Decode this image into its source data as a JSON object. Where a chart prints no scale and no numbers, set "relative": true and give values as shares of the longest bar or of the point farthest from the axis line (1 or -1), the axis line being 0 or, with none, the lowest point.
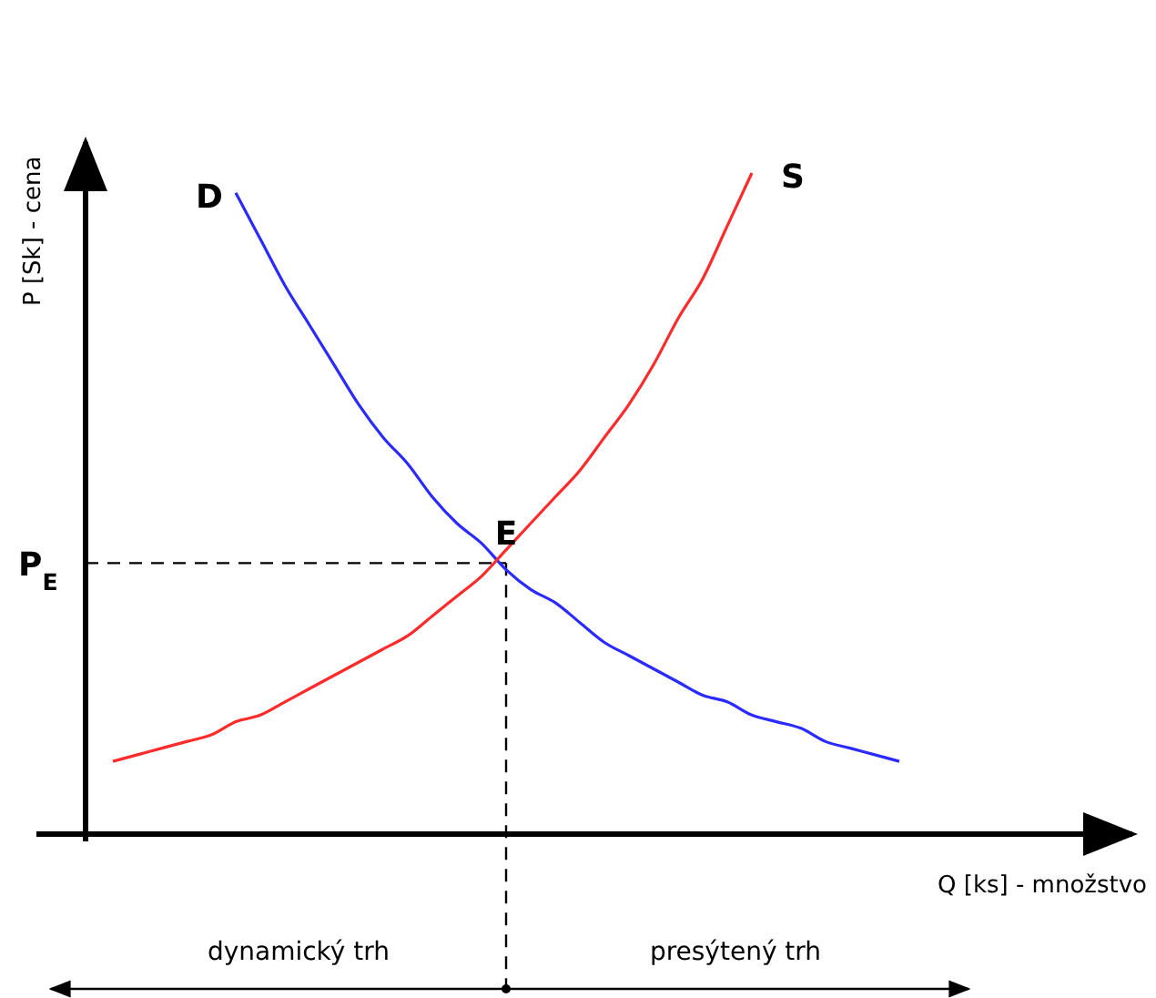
{
  "chart_data": {
    "type": "line",
    "relative": true,
    "xlabel": "Q [ks] - množstvo",
    "ylabel": "P [Sk] - cena",
    "categories": [
      null,
      null,
      null,
      null,
      null,
      null,
      null,
      null,
      null,
      null,
      null,
      null,
      null,
      null,
      null,
      null,
      null,
      null,
      null,
      null,
      null,
      null,
      null,
      null,
      null,
      null,
      null,
      null,
      null,
      null,
      null,
      null,
      null
    ],
    "series": [
      {
        "name": "D",
        "color": "#2b2bff",
        "values": [
          null,
          null,
          null,
          null,
          null,
          0.97,
          0.9,
          0.83,
          0.77,
          0.71,
          0.65,
          0.6,
          0.56,
          0.51,
          0.47,
          0.44,
          0.4,
          0.37,
          0.35,
          0.32,
          0.29,
          0.27,
          0.25,
          0.23,
          0.21,
          0.2,
          0.18,
          0.17,
          0.16,
          0.14,
          0.13,
          0.12,
          0.11
        ]
      },
      {
        "name": "S",
        "color": "#ff2b2b",
        "values": [
          0.11,
          0.12,
          0.13,
          0.14,
          0.15,
          0.17,
          0.18,
          0.2,
          0.22,
          0.24,
          0.26,
          0.28,
          0.3,
          0.33,
          0.36,
          0.39,
          0.43,
          0.47,
          0.51,
          0.55,
          0.6,
          0.65,
          0.71,
          0.78,
          0.84,
          0.92,
          1.0,
          null,
          null,
          null,
          null,
          null,
          null
        ]
      }
    ],
    "ref_lines": [
      {
        "axis": "y",
        "value": 0.41,
        "label": "P$_{E}$",
        "color": "#000000",
        "line_style": "dashed"
      }
    ],
    "annotations": [
      "E",
      "dynamický trh",
      "presýtený trh"
    ],
    "marker": "none",
    "line_style": "solid"
  }
}
